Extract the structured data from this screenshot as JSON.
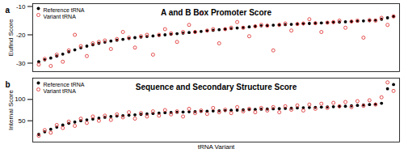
{
  "chart_data": [
    {
      "type": "scatter",
      "panel_label": "a",
      "title": "A and B Box Promoter Score",
      "ylabel": "Eufind Score",
      "x": [
        1,
        2,
        3,
        4,
        5,
        6,
        7,
        8,
        9,
        10,
        11,
        12,
        13,
        14,
        15,
        16,
        17,
        18,
        19,
        20,
        21,
        22,
        23,
        24,
        25,
        26,
        27,
        28,
        29,
        30,
        31,
        32,
        33,
        34,
        35,
        36,
        37,
        38,
        39,
        40,
        41,
        42,
        43,
        44,
        45,
        46,
        47,
        48,
        49,
        50,
        51,
        52,
        53,
        54,
        55,
        56,
        57,
        58,
        59,
        60
      ],
      "xlim": [
        0,
        61
      ],
      "ylim": [
        -33,
        -9
      ],
      "yticks": [
        -30,
        -20,
        -10
      ],
      "tick_labels": "y",
      "grid": false,
      "legend": "top-left",
      "series": [
        {
          "name": "Reference tRNA",
          "color": "#000000",
          "marker": "circle",
          "values": [
            -29.5,
            -28.8,
            -28.2,
            -27.5,
            -26.8,
            -26.0,
            -25.3,
            -24.6,
            -24.0,
            -23.5,
            -23.0,
            -22.6,
            -22.2,
            -21.9,
            -21.6,
            -21.3,
            -21.0,
            -20.8,
            -20.6,
            -20.4,
            -20.2,
            -20.0,
            -19.8,
            -19.6,
            -19.4,
            -19.2,
            -19.0,
            -18.8,
            -18.6,
            -18.4,
            -18.2,
            -18.0,
            -17.8,
            -17.6,
            -17.4,
            -17.2,
            -17.0,
            -16.8,
            -16.7,
            -16.6,
            -16.5,
            -16.4,
            -16.3,
            -16.2,
            -16.1,
            -16.0,
            -15.9,
            -15.8,
            -15.7,
            -15.6,
            -15.5,
            -15.4,
            -15.3,
            -15.2,
            -15.1,
            -15.0,
            -14.8,
            -14.5,
            -14.0,
            -13.5
          ]
        },
        {
          "name": "Variant tRNA",
          "color": "#e03a3a",
          "marker": "circle_open",
          "values": [
            -30.5,
            -28.5,
            -31.0,
            -27.0,
            -29.5,
            -25.5,
            -20.0,
            -24.0,
            -27.5,
            -23.0,
            -22.5,
            -22.0,
            -25.0,
            -21.5,
            -19.0,
            -21.0,
            -24.5,
            -20.5,
            -20.0,
            -27.0,
            -20.0,
            -18.0,
            -19.5,
            -22.5,
            -19.0,
            -16.5,
            -19.0,
            -12.5,
            -18.5,
            -18.0,
            -23.0,
            -18.0,
            -17.5,
            -15.5,
            -17.5,
            -20.5,
            -17.0,
            -16.5,
            -16.8,
            -25.5,
            -16.5,
            -16.0,
            -18.5,
            -16.2,
            -16.0,
            -14.5,
            -15.9,
            -19.0,
            -15.7,
            -15.5,
            -15.0,
            -17.5,
            -15.3,
            -15.0,
            -21.0,
            -14.8,
            -15.0,
            -14.0,
            -16.5,
            -13.5
          ]
        }
      ]
    },
    {
      "type": "scatter",
      "panel_label": "b",
      "title": "Sequence and Secondary Structure Score",
      "ylabel": "Internal Score",
      "xlabel": "tRNA Variant",
      "x": [
        1,
        2,
        3,
        4,
        5,
        6,
        7,
        8,
        9,
        10,
        11,
        12,
        13,
        14,
        15,
        16,
        17,
        18,
        19,
        20,
        21,
        22,
        23,
        24,
        25,
        26,
        27,
        28,
        29,
        30,
        31,
        32,
        33,
        34,
        35,
        36,
        37,
        38,
        39,
        40,
        41,
        42,
        43,
        44,
        45,
        46,
        47,
        48,
        49,
        50,
        51,
        52,
        53,
        54,
        55,
        56,
        57,
        58,
        59,
        60
      ],
      "xlim": [
        0,
        61
      ],
      "ylim": [
        0,
        150
      ],
      "yticks": [
        50,
        100
      ],
      "tick_labels": "y",
      "grid": false,
      "legend": "top-left",
      "series": [
        {
          "name": "Reference tRNA",
          "color": "#000000",
          "marker": "circle",
          "values": [
            18,
            24,
            30,
            35,
            40,
            44,
            47,
            50,
            52,
            54,
            56,
            58,
            60,
            61,
            62,
            63,
            64,
            65,
            66,
            67,
            68,
            69,
            69.5,
            70,
            70.5,
            71,
            71.5,
            72,
            72.5,
            73,
            73.5,
            74,
            74.5,
            75,
            75.5,
            76,
            76.5,
            77,
            77.5,
            78,
            78.5,
            79,
            79.5,
            80,
            80.5,
            81,
            81.5,
            82,
            82.5,
            83,
            83.5,
            84,
            85,
            86,
            87,
            88,
            89,
            91,
            125,
            135
          ]
        },
        {
          "name": "Variant tRNA",
          "color": "#e03a3a",
          "marker": "circle_open",
          "values": [
            15,
            28,
            22,
            40,
            33,
            48,
            38,
            55,
            45,
            60,
            50,
            62,
            52,
            65,
            58,
            70,
            55,
            68,
            60,
            72,
            62,
            75,
            65,
            72,
            60,
            78,
            68,
            74,
            66,
            80,
            70,
            76,
            68,
            82,
            72,
            78,
            70,
            80,
            74,
            82,
            70,
            84,
            76,
            86,
            74,
            88,
            78,
            90,
            80,
            92,
            84,
            94,
            82,
            96,
            85,
            98,
            88,
            105,
            140,
            120
          ]
        }
      ]
    }
  ]
}
